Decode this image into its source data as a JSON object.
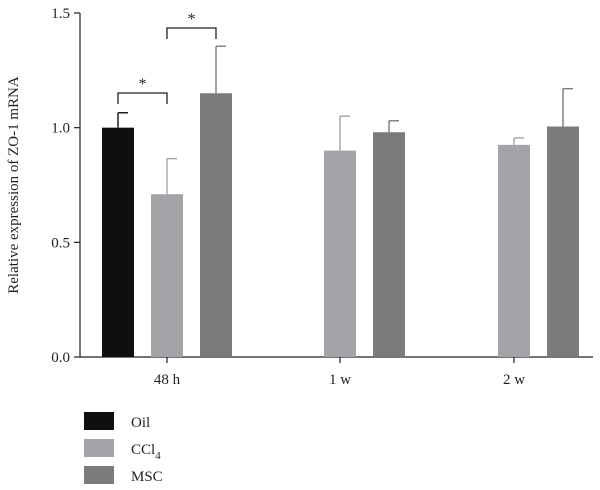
{
  "chart_data": {
    "type": "bar",
    "ylabel": "Relative expression of ZO-1 mRNA",
    "xlabel": "",
    "ylim": [
      0,
      1.5
    ],
    "yticks": [
      "0.0",
      "0.5",
      "1.0",
      "1.5"
    ],
    "categories": [
      "48 h",
      "1 w",
      "2 w"
    ],
    "series": [
      {
        "name": "Oil",
        "color": "#0f0f0f",
        "values": [
          1.0,
          null,
          null
        ],
        "errors": [
          0.065,
          null,
          null
        ]
      },
      {
        "name": "CCl4",
        "color": "#a3a4a8",
        "values": [
          0.71,
          0.9,
          0.925
        ],
        "errors": [
          0.155,
          0.15,
          0.03
        ]
      },
      {
        "name": "MSC",
        "color": "#7b7b7d",
        "values": [
          1.15,
          0.98,
          1.005
        ],
        "errors": [
          0.205,
          0.05,
          0.165
        ]
      }
    ],
    "significance": [
      {
        "category": "48 h",
        "from": "Oil",
        "to": "CCl4",
        "label": "*"
      },
      {
        "category": "48 h",
        "from": "CCl4",
        "to": "MSC",
        "label": "*"
      }
    ],
    "legend": {
      "position": "bottom-left",
      "entries": [
        {
          "label": "Oil",
          "color": "#0f0f0f"
        },
        {
          "label": "CCl",
          "subscript": "4",
          "color": "#a3a4a8"
        },
        {
          "label": "MSC",
          "color": "#7b7b7d"
        }
      ]
    },
    "grid": false
  }
}
